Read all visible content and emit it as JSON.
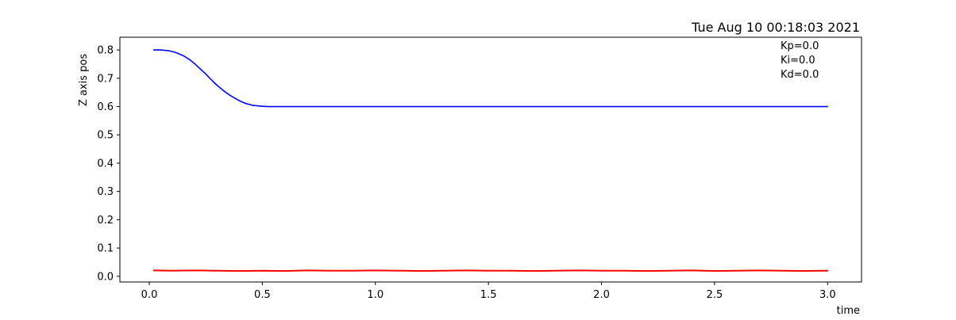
{
  "chart_data": {
    "type": "line",
    "title": "Tue Aug 10 00:18:03 2021",
    "xlabel": "time",
    "ylabel": "Z axis pos",
    "xlim": [
      -0.13,
      3.15
    ],
    "ylim": [
      -0.02,
      0.845
    ],
    "xticks": [
      "0.0",
      "0.5",
      "1.0",
      "1.5",
      "2.0",
      "2.5",
      "3.0"
    ],
    "yticks": [
      "0.0",
      "0.1",
      "0.2",
      "0.3",
      "0.4",
      "0.5",
      "0.6",
      "0.7",
      "0.8"
    ],
    "annotations": [
      "Kp=0.0",
      "Ki=0.0",
      "Kd=0.0"
    ],
    "grid": false,
    "series": [
      {
        "color": "#0000ff",
        "x": [
          0.02,
          0.05,
          0.08,
          0.1,
          0.12,
          0.15,
          0.18,
          0.2,
          0.22,
          0.25,
          0.28,
          0.3,
          0.33,
          0.36,
          0.4,
          0.43,
          0.46,
          0.5,
          0.53,
          0.56,
          0.6,
          0.7,
          1.0,
          1.5,
          2.0,
          2.5,
          3.0
        ],
        "y": [
          0.8,
          0.8,
          0.798,
          0.795,
          0.79,
          0.78,
          0.765,
          0.752,
          0.737,
          0.715,
          0.69,
          0.675,
          0.655,
          0.638,
          0.62,
          0.61,
          0.604,
          0.601,
          0.6,
          0.6,
          0.6,
          0.6,
          0.6,
          0.6,
          0.6,
          0.6,
          0.6
        ]
      },
      {
        "color": "#ff0000",
        "x": [
          0.02,
          0.1,
          0.2,
          0.3,
          0.4,
          0.5,
          0.6,
          0.7,
          0.8,
          0.9,
          1.0,
          1.1,
          1.2,
          1.3,
          1.4,
          1.5,
          1.6,
          1.7,
          1.8,
          1.9,
          2.0,
          2.1,
          2.2,
          2.3,
          2.4,
          2.5,
          2.6,
          2.7,
          2.8,
          2.9,
          3.0
        ],
        "y": [
          0.021,
          0.02,
          0.021,
          0.02,
          0.019,
          0.02,
          0.019,
          0.021,
          0.02,
          0.02,
          0.021,
          0.02,
          0.019,
          0.02,
          0.021,
          0.02,
          0.02,
          0.019,
          0.02,
          0.021,
          0.02,
          0.02,
          0.019,
          0.02,
          0.021,
          0.019,
          0.02,
          0.021,
          0.02,
          0.019,
          0.02
        ]
      }
    ]
  }
}
